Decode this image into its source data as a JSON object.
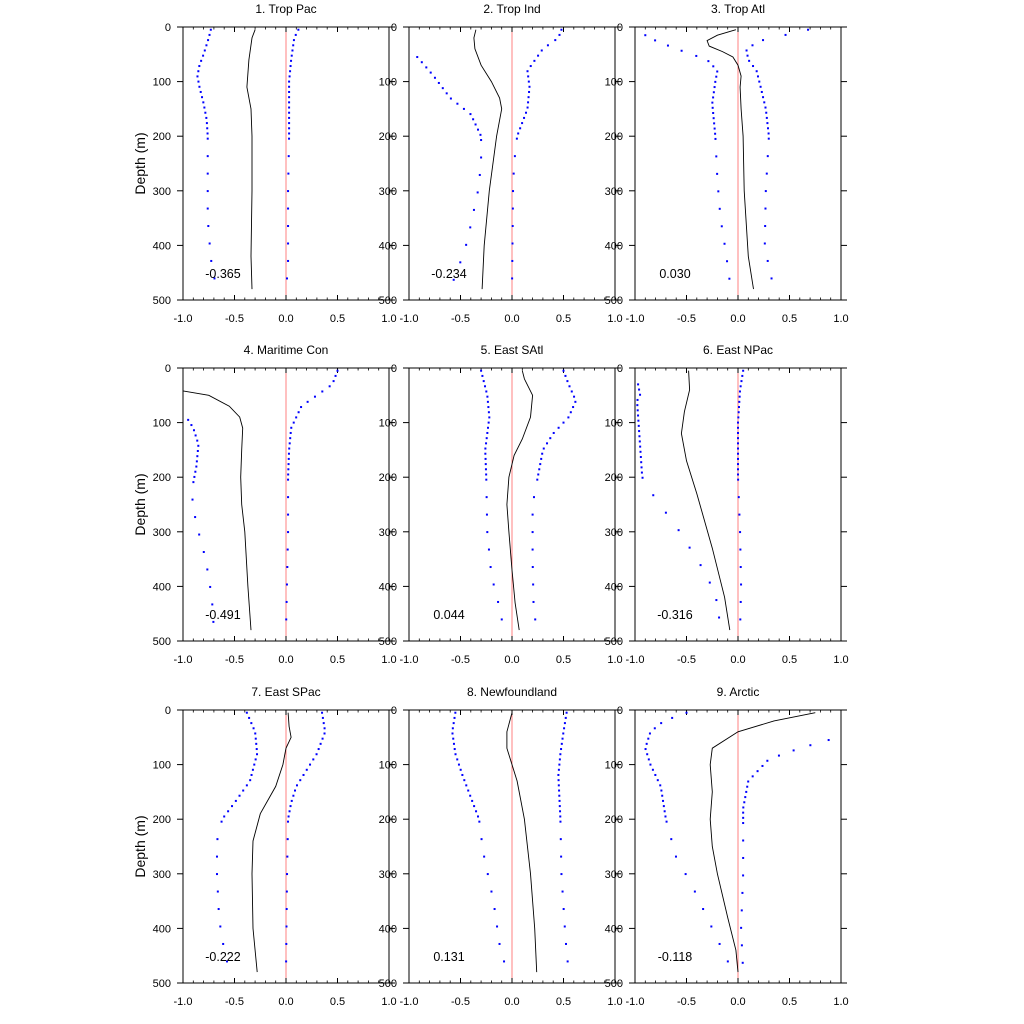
{
  "figure": {
    "ylabel": "Depth (m)"
  },
  "chart_data": [
    {
      "type": "line",
      "title": "1. Trop Pac",
      "ylabel": "Depth (m)",
      "xlabel": "",
      "xlim": [
        -1.0,
        1.0
      ],
      "ylim": [
        500,
        0
      ],
      "grid": false,
      "stat": "-0.365",
      "xticks": [
        "-1.0",
        "-0.5",
        "0.0",
        "0.5",
        "1.0"
      ],
      "yticks": [
        "0",
        "100",
        "200",
        "300",
        "400",
        "500"
      ],
      "mean": [
        [
          -0.3,
          5
        ],
        [
          -0.33,
          20
        ],
        [
          -0.36,
          60
        ],
        [
          -0.38,
          110
        ],
        [
          -0.34,
          150
        ],
        [
          -0.33,
          200
        ],
        [
          -0.33,
          300
        ],
        [
          -0.34,
          420
        ],
        [
          -0.33,
          480
        ]
      ],
      "lower": [
        [
          -0.73,
          5
        ],
        [
          -0.75,
          20
        ],
        [
          -0.8,
          50
        ],
        [
          -0.84,
          70
        ],
        [
          -0.86,
          90
        ],
        [
          -0.84,
          110
        ],
        [
          -0.8,
          140
        ],
        [
          -0.77,
          170
        ],
        [
          -0.76,
          200
        ],
        [
          -0.76,
          300
        ],
        [
          -0.76,
          350
        ],
        [
          -0.74,
          400
        ],
        [
          -0.72,
          440
        ],
        [
          -0.67,
          480
        ]
      ],
      "upper": [
        [
          0.12,
          5
        ],
        [
          0.08,
          20
        ],
        [
          0.05,
          60
        ],
        [
          0.03,
          100
        ],
        [
          0.03,
          200
        ],
        [
          0.02,
          300
        ],
        [
          0.02,
          440
        ],
        [
          0.0,
          480
        ]
      ]
    },
    {
      "type": "line",
      "title": "2. Trop Ind",
      "ylabel": "Depth (m)",
      "xlabel": "",
      "xlim": [
        -1.0,
        1.0
      ],
      "ylim": [
        500,
        0
      ],
      "grid": false,
      "stat": "-0.234",
      "xticks": [
        "-1.0",
        "-0.5",
        "0.0",
        "0.5",
        "1.0"
      ],
      "yticks": [
        "0",
        "100",
        "200",
        "300",
        "400",
        "500"
      ],
      "mean": [
        [
          -0.35,
          5
        ],
        [
          -0.37,
          20
        ],
        [
          -0.36,
          40
        ],
        [
          -0.3,
          70
        ],
        [
          -0.2,
          100
        ],
        [
          -0.12,
          130
        ],
        [
          -0.1,
          150
        ],
        [
          -0.15,
          200
        ],
        [
          -0.22,
          300
        ],
        [
          -0.27,
          400
        ],
        [
          -0.29,
          480
        ]
      ],
      "lower": [
        [
          -0.92,
          55
        ],
        [
          -0.85,
          70
        ],
        [
          -0.76,
          90
        ],
        [
          -0.6,
          130
        ],
        [
          -0.4,
          160
        ],
        [
          -0.3,
          200
        ],
        [
          -0.3,
          250
        ],
        [
          -0.33,
          300
        ],
        [
          -0.42,
          380
        ],
        [
          -0.46,
          410
        ],
        [
          -0.6,
          480
        ]
      ],
      "upper": [
        [
          0.48,
          5
        ],
        [
          0.45,
          20
        ],
        [
          0.3,
          40
        ],
        [
          0.15,
          80
        ],
        [
          0.17,
          110
        ],
        [
          0.15,
          150
        ],
        [
          0.05,
          200
        ],
        [
          0.02,
          250
        ],
        [
          0.01,
          300
        ],
        [
          0.0,
          480
        ]
      ]
    },
    {
      "type": "line",
      "title": "3. Trop Atl",
      "ylabel": "Depth (m)",
      "xlabel": "",
      "xlim": [
        -1.0,
        1.0
      ],
      "ylim": [
        500,
        0
      ],
      "grid": false,
      "stat": "0.030",
      "xticks": [
        "-1.0",
        "-0.5",
        "0.0",
        "0.5",
        "1.0"
      ],
      "yticks": [
        "0",
        "100",
        "200",
        "300",
        "400",
        "500"
      ],
      "mean": [
        [
          -0.02,
          5
        ],
        [
          -0.2,
          15
        ],
        [
          -0.3,
          25
        ],
        [
          -0.28,
          35
        ],
        [
          -0.15,
          45
        ],
        [
          -0.05,
          55
        ],
        [
          0.0,
          70
        ],
        [
          0.03,
          90
        ],
        [
          0.02,
          110
        ],
        [
          0.03,
          150
        ],
        [
          0.05,
          200
        ],
        [
          0.06,
          300
        ],
        [
          0.1,
          420
        ],
        [
          0.15,
          480
        ]
      ],
      "lower": [
        [
          -0.9,
          15
        ],
        [
          -0.8,
          25
        ],
        [
          -0.6,
          40
        ],
        [
          -0.3,
          60
        ],
        [
          -0.2,
          80
        ],
        [
          -0.22,
          100
        ],
        [
          -0.25,
          140
        ],
        [
          -0.22,
          200
        ],
        [
          -0.2,
          280
        ],
        [
          -0.17,
          350
        ],
        [
          -0.12,
          410
        ],
        [
          -0.07,
          480
        ]
      ],
      "upper": [
        [
          0.68,
          5
        ],
        [
          0.45,
          15
        ],
        [
          0.22,
          25
        ],
        [
          0.08,
          40
        ],
        [
          0.1,
          60
        ],
        [
          0.18,
          80
        ],
        [
          0.22,
          110
        ],
        [
          0.27,
          150
        ],
        [
          0.3,
          200
        ],
        [
          0.27,
          300
        ],
        [
          0.26,
          400
        ],
        [
          0.3,
          440
        ],
        [
          0.35,
          480
        ]
      ]
    },
    {
      "type": "line",
      "title": "4. Maritime Con",
      "ylabel": "Depth (m)",
      "xlabel": "",
      "xlim": [
        -1.0,
        1.0
      ],
      "ylim": [
        500,
        0
      ],
      "grid": false,
      "stat": "-0.491",
      "xticks": [
        "-1.0",
        "-0.5",
        "0.0",
        "0.5",
        "1.0"
      ],
      "yticks": [
        "0",
        "100",
        "200",
        "300",
        "400",
        "500"
      ],
      "mean": [
        [
          -1.0,
          42
        ],
        [
          -0.75,
          50
        ],
        [
          -0.55,
          70
        ],
        [
          -0.45,
          90
        ],
        [
          -0.42,
          110
        ],
        [
          -0.43,
          150
        ],
        [
          -0.44,
          200
        ],
        [
          -0.43,
          250
        ],
        [
          -0.4,
          300
        ],
        [
          -0.37,
          400
        ],
        [
          -0.34,
          480
        ]
      ],
      "lower": [
        [
          -0.95,
          95
        ],
        [
          -0.9,
          110
        ],
        [
          -0.85,
          140
        ],
        [
          -0.87,
          180
        ],
        [
          -0.9,
          210
        ],
        [
          -0.91,
          250
        ],
        [
          -0.85,
          300
        ],
        [
          -0.78,
          350
        ],
        [
          -0.72,
          420
        ],
        [
          -0.7,
          480
        ]
      ],
      "upper": [
        [
          0.5,
          5
        ],
        [
          0.45,
          30
        ],
        [
          0.3,
          50
        ],
        [
          0.15,
          70
        ],
        [
          0.05,
          110
        ],
        [
          0.03,
          150
        ],
        [
          0.02,
          200
        ],
        [
          0.02,
          300
        ],
        [
          0.0,
          480
        ]
      ]
    },
    {
      "type": "line",
      "title": "5. East SAtl",
      "ylabel": "Depth (m)",
      "xlabel": "",
      "xlim": [
        -1.0,
        1.0
      ],
      "ylim": [
        500,
        0
      ],
      "grid": false,
      "stat": "0.044",
      "xticks": [
        "-1.0",
        "-0.5",
        "0.0",
        "0.5",
        "1.0"
      ],
      "yticks": [
        "0",
        "100",
        "200",
        "300",
        "400",
        "500"
      ],
      "mean": [
        [
          0.1,
          5
        ],
        [
          0.12,
          20
        ],
        [
          0.2,
          50
        ],
        [
          0.18,
          90
        ],
        [
          0.1,
          130
        ],
        [
          0.02,
          160
        ],
        [
          -0.03,
          200
        ],
        [
          -0.05,
          250
        ],
        [
          -0.03,
          300
        ],
        [
          0.0,
          370
        ],
        [
          0.03,
          430
        ],
        [
          0.07,
          480
        ]
      ],
      "lower": [
        [
          -0.3,
          5
        ],
        [
          -0.24,
          50
        ],
        [
          -0.22,
          90
        ],
        [
          -0.26,
          150
        ],
        [
          -0.25,
          200
        ],
        [
          -0.24,
          300
        ],
        [
          -0.2,
          380
        ],
        [
          -0.12,
          440
        ],
        [
          -0.08,
          480
        ]
      ],
      "upper": [
        [
          0.5,
          5
        ],
        [
          0.55,
          30
        ],
        [
          0.62,
          60
        ],
        [
          0.55,
          90
        ],
        [
          0.4,
          120
        ],
        [
          0.3,
          150
        ],
        [
          0.25,
          200
        ],
        [
          0.2,
          250
        ],
        [
          0.2,
          350
        ],
        [
          0.21,
          440
        ],
        [
          0.24,
          480
        ]
      ]
    },
    {
      "type": "line",
      "title": "6. East NPac",
      "ylabel": "Depth (m)",
      "xlabel": "",
      "xlim": [
        -1.0,
        1.0
      ],
      "ylim": [
        500,
        0
      ],
      "grid": false,
      "stat": "-0.316",
      "xticks": [
        "-1.0",
        "-0.5",
        "0.0",
        "0.5",
        "1.0"
      ],
      "yticks": [
        "0",
        "100",
        "200",
        "300",
        "400",
        "500"
      ],
      "mean": [
        [
          -0.48,
          5
        ],
        [
          -0.47,
          40
        ],
        [
          -0.52,
          80
        ],
        [
          -0.55,
          120
        ],
        [
          -0.5,
          170
        ],
        [
          -0.4,
          230
        ],
        [
          -0.25,
          330
        ],
        [
          -0.13,
          420
        ],
        [
          -0.08,
          480
        ]
      ],
      "lower": [
        [
          -0.97,
          30
        ],
        [
          -0.95,
          50
        ],
        [
          -0.98,
          60
        ],
        [
          -0.93,
          200
        ],
        [
          -0.8,
          240
        ],
        [
          -0.6,
          290
        ],
        [
          -0.3,
          380
        ],
        [
          -0.2,
          430
        ],
        [
          -0.17,
          480
        ]
      ],
      "upper": [
        [
          0.05,
          5
        ],
        [
          0.02,
          40
        ],
        [
          0.0,
          100
        ],
        [
          0.0,
          200
        ],
        [
          0.02,
          300
        ],
        [
          0.03,
          400
        ],
        [
          0.02,
          480
        ]
      ]
    },
    {
      "type": "line",
      "title": "7. East SPac",
      "ylabel": "Depth (m)",
      "xlabel": "",
      "xlim": [
        -1.0,
        1.0
      ],
      "ylim": [
        500,
        0
      ],
      "grid": false,
      "stat": "-0.222",
      "xticks": [
        "-1.0",
        "-0.5",
        "0.0",
        "0.5",
        "1.0"
      ],
      "yticks": [
        "0",
        "100",
        "200",
        "300",
        "400",
        "500"
      ],
      "mean": [
        [
          0.02,
          5
        ],
        [
          0.03,
          30
        ],
        [
          0.05,
          50
        ],
        [
          0.0,
          70
        ],
        [
          -0.03,
          100
        ],
        [
          -0.1,
          140
        ],
        [
          -0.25,
          190
        ],
        [
          -0.32,
          240
        ],
        [
          -0.33,
          300
        ],
        [
          -0.32,
          400
        ],
        [
          -0.28,
          480
        ]
      ],
      "lower": [
        [
          -0.38,
          5
        ],
        [
          -0.3,
          40
        ],
        [
          -0.28,
          80
        ],
        [
          -0.35,
          130
        ],
        [
          -0.5,
          170
        ],
        [
          -0.62,
          200
        ],
        [
          -0.67,
          240
        ],
        [
          -0.67,
          300
        ],
        [
          -0.65,
          380
        ],
        [
          -0.62,
          420
        ],
        [
          -0.55,
          480
        ]
      ],
      "upper": [
        [
          0.35,
          5
        ],
        [
          0.38,
          40
        ],
        [
          0.3,
          80
        ],
        [
          0.2,
          110
        ],
        [
          0.1,
          140
        ],
        [
          0.05,
          170
        ],
        [
          0.02,
          200
        ],
        [
          0.01,
          300
        ],
        [
          0.0,
          480
        ]
      ]
    },
    {
      "type": "line",
      "title": "8. Newfoundland",
      "ylabel": "Depth (m)",
      "xlabel": "",
      "xlim": [
        -1.0,
        1.0
      ],
      "ylim": [
        500,
        0
      ],
      "grid": false,
      "stat": "0.131",
      "xticks": [
        "-1.0",
        "-0.5",
        "0.0",
        "0.5",
        "1.0"
      ],
      "yticks": [
        "0",
        "100",
        "200",
        "300",
        "400",
        "500"
      ],
      "mean": [
        [
          0.0,
          5
        ],
        [
          -0.05,
          40
        ],
        [
          -0.05,
          70
        ],
        [
          0.0,
          100
        ],
        [
          0.05,
          130
        ],
        [
          0.12,
          200
        ],
        [
          0.18,
          300
        ],
        [
          0.22,
          400
        ],
        [
          0.24,
          480
        ]
      ],
      "lower": [
        [
          -0.55,
          5
        ],
        [
          -0.58,
          40
        ],
        [
          -0.55,
          80
        ],
        [
          -0.48,
          120
        ],
        [
          -0.4,
          160
        ],
        [
          -0.32,
          200
        ],
        [
          -0.28,
          260
        ],
        [
          -0.18,
          350
        ],
        [
          -0.12,
          430
        ],
        [
          -0.05,
          480
        ]
      ],
      "upper": [
        [
          0.53,
          5
        ],
        [
          0.5,
          40
        ],
        [
          0.47,
          80
        ],
        [
          0.45,
          120
        ],
        [
          0.47,
          200
        ],
        [
          0.48,
          300
        ],
        [
          0.52,
          420
        ],
        [
          0.55,
          480
        ]
      ]
    },
    {
      "type": "line",
      "title": "9. Arctic",
      "ylabel": "Depth (m)",
      "xlabel": "",
      "xlim": [
        -1.0,
        1.0
      ],
      "ylim": [
        500,
        0
      ],
      "grid": false,
      "stat": "-0.118",
      "xticks": [
        "-1.0",
        "-0.5",
        "0.0",
        "0.5",
        "1.0"
      ],
      "yticks": [
        "0",
        "100",
        "200",
        "300",
        "400",
        "500"
      ],
      "mean": [
        [
          0.75,
          5
        ],
        [
          0.35,
          20
        ],
        [
          0.0,
          40
        ],
        [
          -0.25,
          70
        ],
        [
          -0.27,
          100
        ],
        [
          -0.25,
          150
        ],
        [
          -0.27,
          200
        ],
        [
          -0.25,
          250
        ],
        [
          -0.2,
          300
        ],
        [
          -0.1,
          380
        ],
        [
          -0.02,
          440
        ],
        [
          0.0,
          480
        ]
      ],
      "lower": [
        [
          -0.5,
          5
        ],
        [
          -0.72,
          20
        ],
        [
          -0.85,
          40
        ],
        [
          -0.9,
          70
        ],
        [
          -0.85,
          100
        ],
        [
          -0.75,
          140
        ],
        [
          -0.7,
          200
        ],
        [
          -0.6,
          270
        ],
        [
          -0.45,
          320
        ],
        [
          -0.3,
          380
        ],
        [
          -0.15,
          440
        ],
        [
          -0.05,
          480
        ]
      ],
      "upper": [
        [
          0.88,
          55
        ],
        [
          0.6,
          70
        ],
        [
          0.3,
          90
        ],
        [
          0.1,
          130
        ],
        [
          0.05,
          180
        ],
        [
          0.05,
          300
        ],
        [
          0.03,
          400
        ],
        [
          0.05,
          480
        ]
      ]
    }
  ]
}
